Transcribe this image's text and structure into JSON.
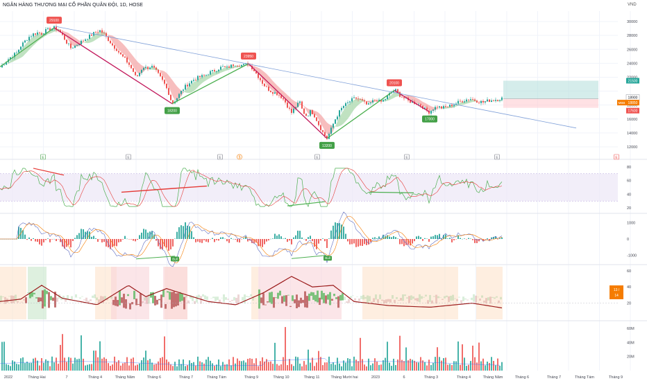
{
  "chart_data": {
    "type": "candlestick",
    "title": "NGÂN HÀNG THƯƠNG MẠI CỔ PHẦN QUÂN ĐỘI, 1D, HOSE",
    "currency": "VND",
    "price_axis_ticks": [
      "30000",
      "28000",
      "26000",
      "24000",
      "22000",
      "18000",
      "16000",
      "14000",
      "12000"
    ],
    "price_ylim": [
      11000,
      31500
    ],
    "right_tags": [
      {
        "label": "21500",
        "value": 21500,
        "color": "#26a69a"
      },
      {
        "label": "18900",
        "value": 18900,
        "color": "#ffffff"
      },
      {
        "label": "18850",
        "value": 18850,
        "color": "#f57c00",
        "prefix": "MBB"
      },
      {
        "label": "17600",
        "value": 17600,
        "color": "#ef5350"
      }
    ],
    "price_path": [
      [
        0,
        23400
      ],
      [
        6,
        24000
      ],
      [
        12,
        24600
      ],
      [
        18,
        25100
      ],
      [
        24,
        25500
      ],
      [
        30,
        26500
      ],
      [
        36,
        27200
      ],
      [
        42,
        27800
      ],
      [
        48,
        28200
      ],
      [
        54,
        28400
      ],
      [
        60,
        28300
      ],
      [
        66,
        28700
      ],
      [
        72,
        28900
      ],
      [
        78,
        29100
      ],
      [
        84,
        28800
      ],
      [
        90,
        28000
      ],
      [
        96,
        27000
      ],
      [
        102,
        26200
      ],
      [
        108,
        26500
      ],
      [
        114,
        26900
      ],
      [
        120,
        27300
      ],
      [
        126,
        27700
      ],
      [
        132,
        28100
      ],
      [
        138,
        28500
      ],
      [
        144,
        28700
      ],
      [
        150,
        28200
      ],
      [
        156,
        27400
      ],
      [
        162,
        26600
      ],
      [
        168,
        26000
      ],
      [
        174,
        25200
      ],
      [
        180,
        24600
      ],
      [
        186,
        23800
      ],
      [
        192,
        22800
      ],
      [
        196,
        21900
      ],
      [
        200,
        22500
      ],
      [
        206,
        23500
      ],
      [
        212,
        23300
      ],
      [
        218,
        23600
      ],
      [
        224,
        23000
      ],
      [
        230,
        22100
      ],
      [
        236,
        21200
      ],
      [
        242,
        20000
      ],
      [
        248,
        18200
      ],
      [
        254,
        18900
      ],
      [
        260,
        19800
      ],
      [
        266,
        20600
      ],
      [
        272,
        21100
      ],
      [
        278,
        21600
      ],
      [
        284,
        21900
      ],
      [
        290,
        22100
      ],
      [
        296,
        22300
      ],
      [
        302,
        22700
      ],
      [
        308,
        22900
      ],
      [
        314,
        23200
      ],
      [
        320,
        23500
      ],
      [
        326,
        23300
      ],
      [
        332,
        23600
      ],
      [
        338,
        23900
      ],
      [
        344,
        23800
      ],
      [
        350,
        23700
      ],
      [
        356,
        23950
      ],
      [
        362,
        23500
      ],
      [
        368,
        22700
      ],
      [
        374,
        21800
      ],
      [
        380,
        20900
      ],
      [
        386,
        20300
      ],
      [
        392,
        19900
      ],
      [
        398,
        19700
      ],
      [
        404,
        19300
      ],
      [
        410,
        18600
      ],
      [
        416,
        17500
      ],
      [
        420,
        16900
      ],
      [
        426,
        17800
      ],
      [
        432,
        18400
      ],
      [
        436,
        17100
      ],
      [
        442,
        16400
      ],
      [
        448,
        17200
      ],
      [
        454,
        16300
      ],
      [
        460,
        15000
      ],
      [
        466,
        13900
      ],
      [
        471,
        13200
      ],
      [
        476,
        14300
      ],
      [
        482,
        15800
      ],
      [
        488,
        16900
      ],
      [
        494,
        17800
      ],
      [
        500,
        18200
      ],
      [
        506,
        18700
      ],
      [
        512,
        19000
      ],
      [
        518,
        18800
      ],
      [
        524,
        18400
      ],
      [
        530,
        17900
      ],
      [
        536,
        18500
      ],
      [
        542,
        18800
      ],
      [
        548,
        18400
      ],
      [
        554,
        18800
      ],
      [
        560,
        19500
      ],
      [
        566,
        20000
      ],
      [
        570,
        20100
      ],
      [
        576,
        19400
      ],
      [
        582,
        19000
      ],
      [
        588,
        18600
      ],
      [
        594,
        18400
      ],
      [
        600,
        18200
      ],
      [
        606,
        18000
      ],
      [
        612,
        17400
      ],
      [
        618,
        17000
      ],
      [
        624,
        17500
      ],
      [
        630,
        17800
      ],
      [
        636,
        17600
      ],
      [
        642,
        17700
      ],
      [
        648,
        17900
      ],
      [
        654,
        18100
      ],
      [
        660,
        18400
      ],
      [
        666,
        18600
      ],
      [
        672,
        18800
      ],
      [
        678,
        18900
      ],
      [
        684,
        18700
      ],
      [
        690,
        18500
      ],
      [
        696,
        18400
      ],
      [
        702,
        18600
      ],
      [
        708,
        18700
      ],
      [
        714,
        18800
      ],
      [
        718,
        18850
      ],
      [
        724,
        19000
      ]
    ],
    "swing_labels": [
      {
        "label": "29100",
        "x": 78,
        "value": 29100,
        "kind": "high"
      },
      {
        "label": "23950",
        "x": 358,
        "value": 23950,
        "kind": "high"
      },
      {
        "label": "20100",
        "x": 568,
        "value": 20100,
        "kind": "high"
      },
      {
        "label": "18200",
        "x": 248,
        "value": 18200,
        "kind": "low"
      },
      {
        "label": "13200",
        "x": 471,
        "value": 13200,
        "kind": "low"
      },
      {
        "label": "17000",
        "x": 619,
        "value": 17000,
        "kind": "low"
      }
    ],
    "trendline": {
      "from": [
        80,
        29300
      ],
      "to": [
        830,
        14700
      ]
    },
    "position_box": {
      "x0": 725,
      "x1": 862,
      "target": 21500,
      "entry": 18900,
      "stop": 17600
    },
    "earnings_markers": [
      "E",
      "E",
      "E",
      "E",
      "E",
      "E",
      "E",
      "E"
    ],
    "dividend_marker": "$",
    "rsi": {
      "ticks": [
        "80",
        "60",
        "40",
        "20"
      ],
      "ylim": [
        15,
        85
      ],
      "band": [
        30,
        70
      ]
    },
    "macd": {
      "ticks": [
        "1000",
        "0",
        "-1000"
      ],
      "ylim": [
        -1400,
        1400
      ],
      "labels": [
        "Bull",
        "Bull"
      ]
    },
    "adx": {
      "ticks": [
        "60",
        "40",
        "20"
      ],
      "ylim": [
        0,
        65
      ],
      "tag": "13 / 14 ADX"
    },
    "volume": {
      "ticks": [
        "60M",
        "40M",
        "20M"
      ],
      "ylim": [
        0,
        68
      ]
    },
    "x_axis_labels": [
      "2022",
      "Tháng Hai",
      "7",
      "Tháng 4",
      "Tháng Năm",
      "Tháng 6",
      "Tháng 7",
      "Tháng Tám",
      "Tháng 9",
      "Tháng 10",
      "Tháng 11",
      "Tháng Mười hai",
      "2023",
      "6",
      "Tháng 3",
      "Tháng 4",
      "Tháng Năm",
      "Tháng 6",
      "Tháng 7",
      "Tháng Tám",
      "Tháng 9"
    ],
    "colors": {
      "up": "#26a69a",
      "down": "#ef5350",
      "trend": "#7e9fd8",
      "rsi": "#4caf50",
      "rsi_ma": "#e53935",
      "band_bg": "#ede7f6",
      "macd": "#f57c00",
      "signal": "#5c6bc0",
      "adx": "#b71c1c",
      "adx_band": "#fde0c6"
    }
  }
}
